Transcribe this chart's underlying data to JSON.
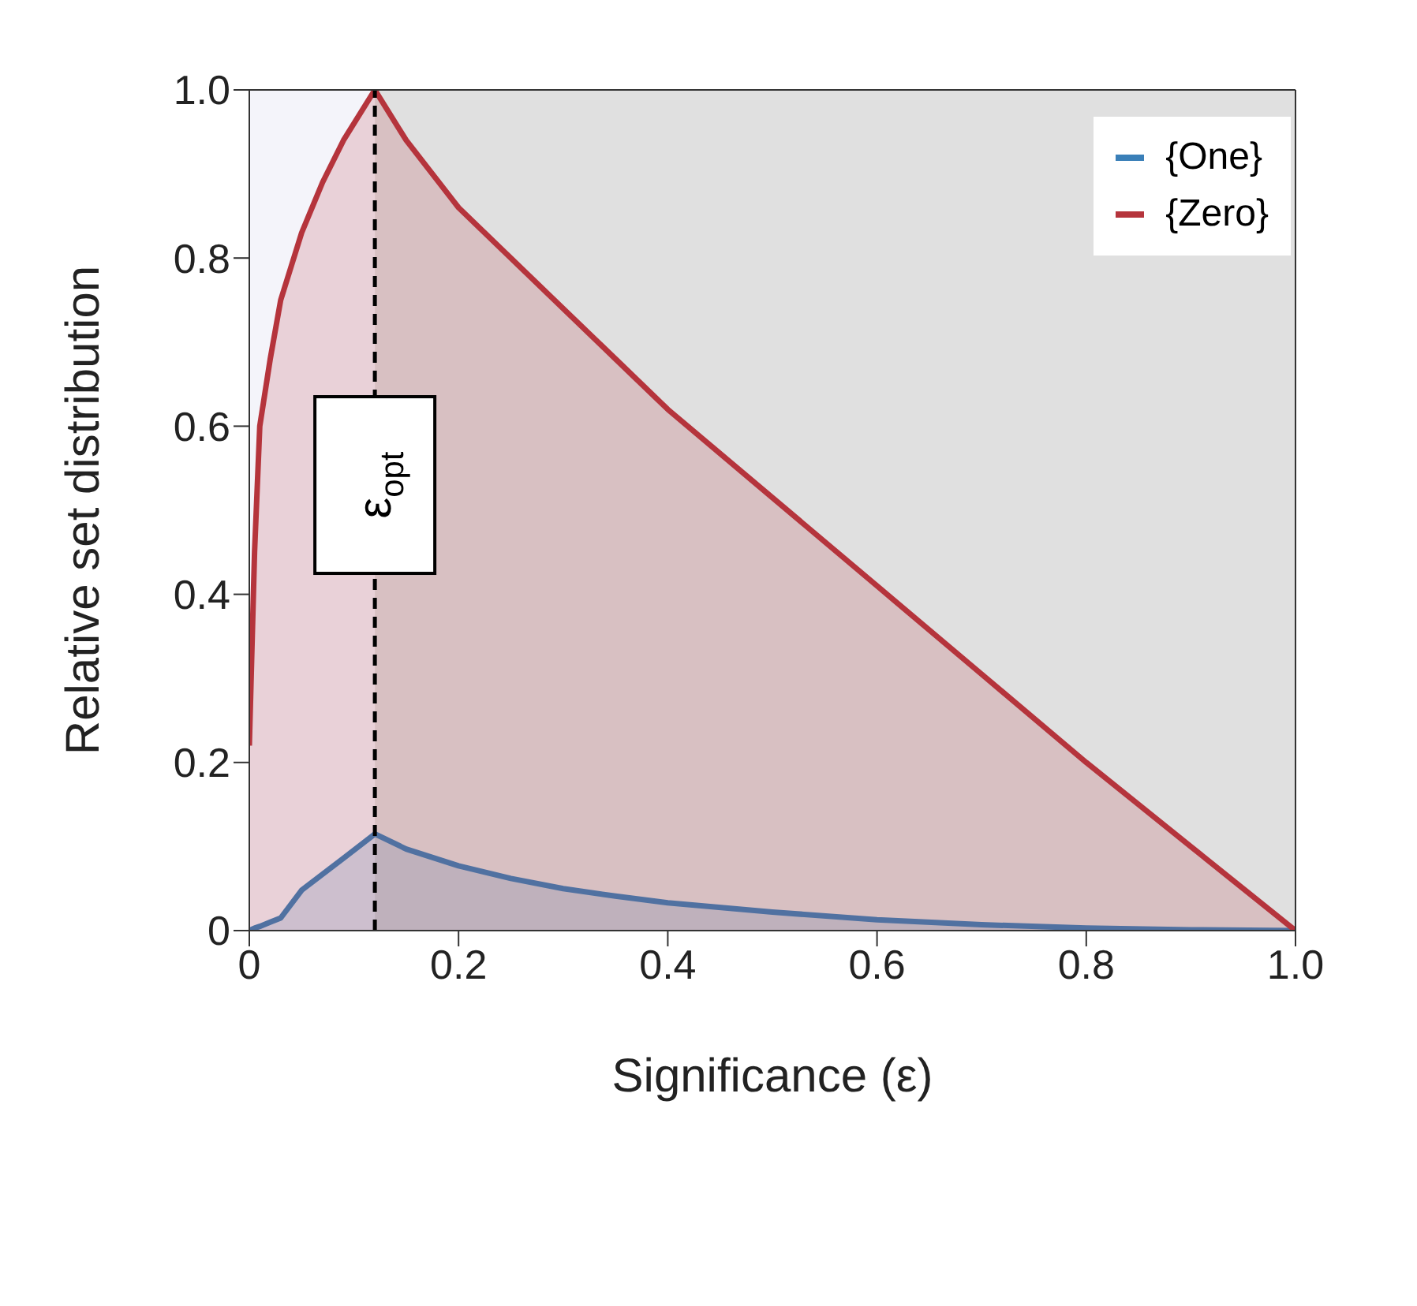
{
  "chart_data": {
    "type": "area",
    "xlabel": "Significance (ε)",
    "ylabel": "Relative set distribution",
    "x": [
      0,
      0.005,
      0.01,
      0.02,
      0.03,
      0.05,
      0.07,
      0.09,
      0.12,
      0.15,
      0.2,
      0.25,
      0.3,
      0.35,
      0.4,
      0.5,
      0.6,
      0.7,
      0.8,
      0.9,
      1.0
    ],
    "series": [
      {
        "name": "{One}",
        "color": "#3a7fb8",
        "values": [
          0,
          0.003,
          0.005,
          0.01,
          0.015,
          0.048,
          0.067,
          0.086,
          0.115,
          0.097,
          0.077,
          0.062,
          0.05,
          0.041,
          0.033,
          0.022,
          0.013,
          0.007,
          0.003,
          0.001,
          0
        ]
      },
      {
        "name": "{Zero}",
        "color": "#b5343c",
        "values": [
          0.22,
          0.45,
          0.6,
          0.68,
          0.75,
          0.83,
          0.89,
          0.94,
          1.0,
          0.94,
          0.86,
          0.8,
          0.74,
          0.68,
          0.62,
          0.515,
          0.41,
          0.305,
          0.2,
          0.1,
          0
        ]
      }
    ],
    "xlim": [
      0,
      1
    ],
    "xticks": [
      0,
      0.2,
      0.4,
      0.6,
      0.8,
      {
        "value": 1,
        "label": "1.0"
      }
    ],
    "ylim": [
      0,
      1
    ],
    "yticks": [
      0,
      0.2,
      0.4,
      0.6,
      0.8,
      {
        "value": 1,
        "label": "1.0"
      }
    ],
    "bands": [
      {
        "axis": "x",
        "from": 0,
        "to": 0.12,
        "color": "#f4f4fa"
      },
      {
        "axis": "x",
        "from": 0.12,
        "to": 1,
        "color": "#e0e0e0"
      }
    ],
    "ref_lines": [
      {
        "axis": "x",
        "value": 0.12,
        "label": "ε$_{opt}$",
        "color": "#000000",
        "line_style": "dashed"
      }
    ],
    "legend": "top right",
    "marker": "none",
    "line_style": "solid"
  }
}
